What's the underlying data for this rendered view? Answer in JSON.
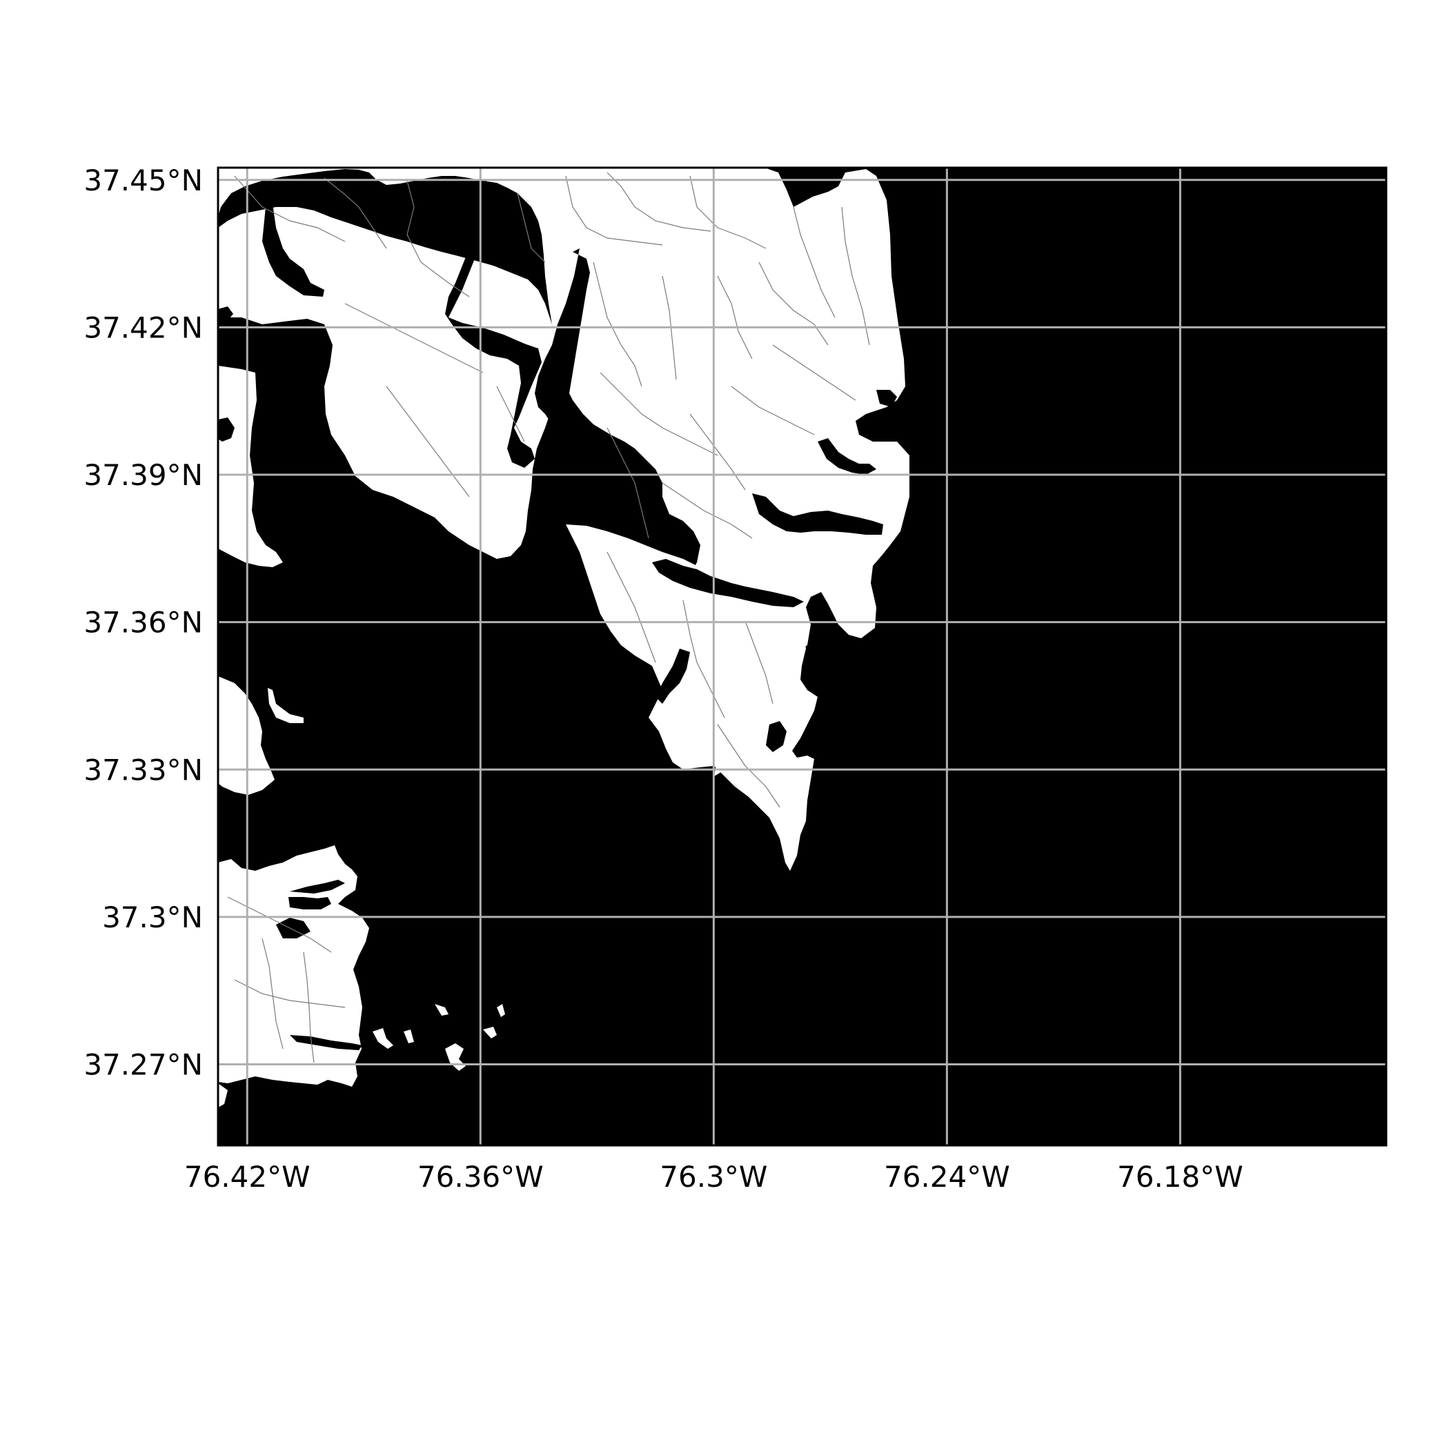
{
  "map": {
    "colors": {
      "water": "#000000",
      "land": "#ffffff",
      "roads": "#7a7a7a",
      "grid": "#b0b0b0",
      "frame": "#000000",
      "background": "#ffffff"
    },
    "extent": {
      "lon_min": -76.4275,
      "lon_max": -76.127,
      "lat_min": 37.2535,
      "lat_max": 37.4525
    },
    "grid": true,
    "lat_ticks": [
      {
        "value": 37.45,
        "label": "37.45°N"
      },
      {
        "value": 37.42,
        "label": "37.42°N"
      },
      {
        "value": 37.39,
        "label": "37.39°N"
      },
      {
        "value": 37.36,
        "label": "37.36°N"
      },
      {
        "value": 37.33,
        "label": "37.33°N"
      },
      {
        "value": 37.3,
        "label": "37.3°N"
      },
      {
        "value": 37.27,
        "label": "37.27°N"
      }
    ],
    "lon_ticks": [
      {
        "value": -76.42,
        "label": "76.42°W"
      },
      {
        "value": -76.36,
        "label": "76.36°W"
      },
      {
        "value": -76.3,
        "label": "76.3°W"
      },
      {
        "value": -76.24,
        "label": "76.24°W"
      },
      {
        "value": -76.18,
        "label": "76.18°W"
      }
    ],
    "land_features": [
      "northern-peninsula",
      "west-edge-shore",
      "southwest-landmass",
      "small-islands"
    ]
  }
}
